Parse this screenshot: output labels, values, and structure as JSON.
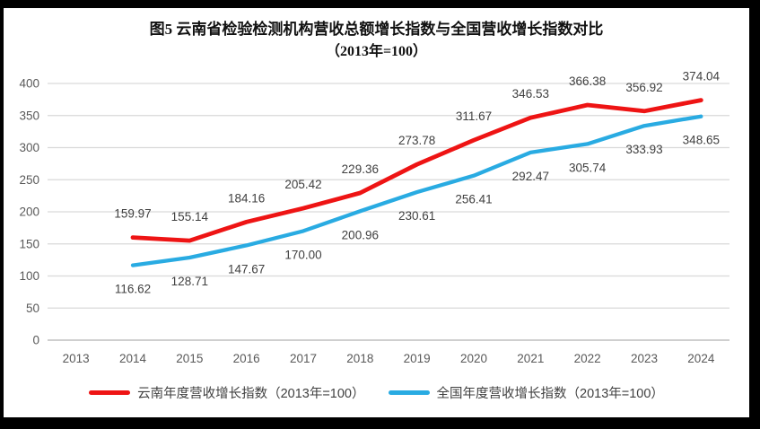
{
  "figure_title": {
    "line1": "图5  云南省检验检测机构营收总额增长指数与全国营收增长指数对比",
    "line2": "（2013年=100）"
  },
  "chart_data": {
    "type": "line",
    "title": "图5 云南省检验检测机构营收总额增长指数与全国营收增长指数对比（2013年=100）",
    "categories": [
      "2013",
      "2014",
      "2015",
      "2016",
      "2017",
      "2018",
      "2019",
      "2020",
      "2021",
      "2022",
      "2023",
      "2024"
    ],
    "yticks": [
      0,
      50,
      100,
      150,
      200,
      250,
      300,
      350,
      400
    ],
    "ylim": [
      0,
      400
    ],
    "xlabel": "",
    "ylabel": "",
    "grid": true,
    "legend_position": "bottom",
    "series": [
      {
        "name": "云南年度营收增长指数（2013年=100）",
        "color": "#ee1414",
        "stroke_width": 4.8,
        "label_position": "above",
        "values": [
          null,
          159.97,
          155.14,
          184.16,
          205.42,
          229.36,
          273.78,
          311.67,
          346.53,
          366.38,
          356.92,
          374.04
        ],
        "labels": [
          null,
          "159.97",
          "155.14",
          "184.16",
          "205.42",
          "229.36",
          "273.78",
          "311.67",
          "346.53",
          "366.38",
          "356.92",
          "374.04"
        ]
      },
      {
        "name": "全国年度营收增长指数（2013年=100）",
        "color": "#29abe2",
        "stroke_width": 4.3,
        "label_position": "below",
        "values": [
          null,
          116.62,
          128.71,
          147.67,
          170.0,
          200.96,
          230.61,
          256.41,
          292.47,
          305.74,
          333.93,
          348.65
        ],
        "labels": [
          null,
          "116.62",
          "128.71",
          "147.67",
          "170.00",
          "200.96",
          "230.61",
          "256.41",
          "292.47",
          "305.74",
          "333.93",
          "348.65"
        ]
      }
    ],
    "colors": {
      "grid": "#d9d9d9",
      "axis_line": "#bfbfbf",
      "axis_text": "#595959",
      "label_text": "#404040",
      "frame": "#000000",
      "background": "#ffffff"
    }
  }
}
